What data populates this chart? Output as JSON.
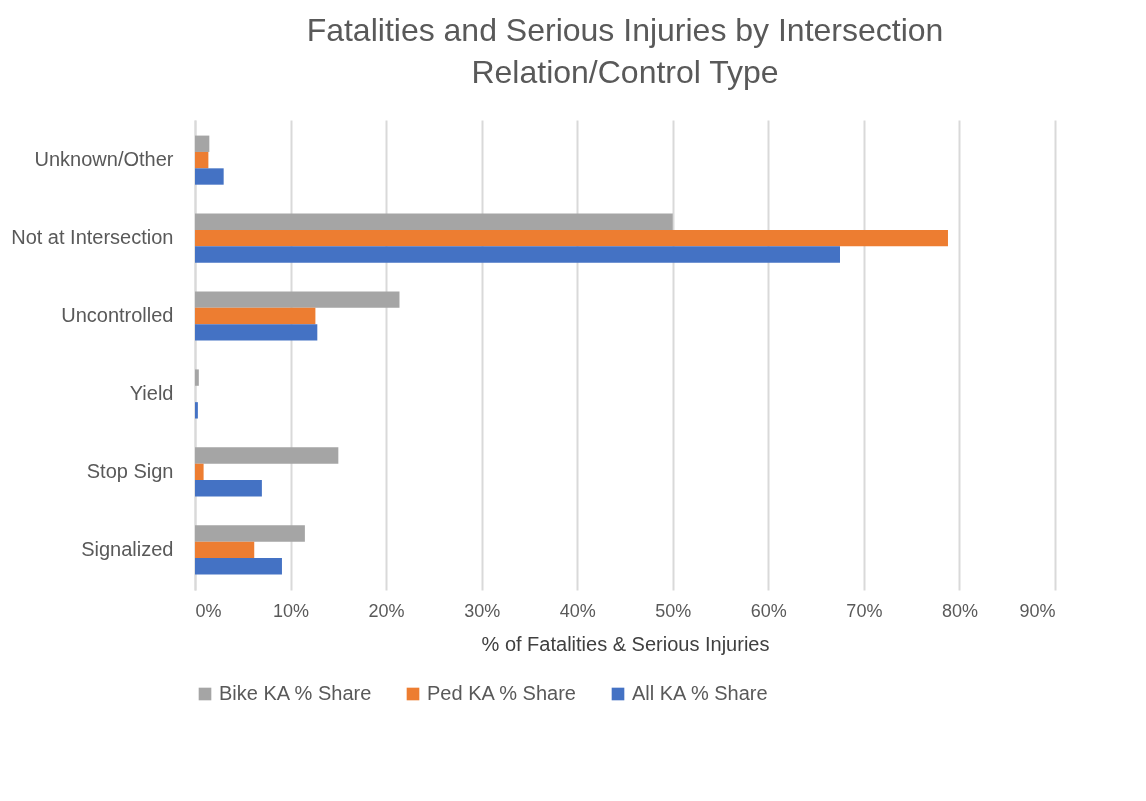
{
  "chart_data": {
    "type": "bar",
    "orientation": "horizontal",
    "title": "Fatalities and Serious Injuries by Intersection Relation/Control Type",
    "xlabel": "% of Fatalities & Serious Injuries",
    "categories": [
      "Unknown/Other",
      "Not at Intersection",
      "Uncontrolled",
      "Yield",
      "Stop Sign",
      "Signalized"
    ],
    "series": [
      {
        "name": "Bike KA % Share",
        "color": "#a5a5a5",
        "values": [
          1.5,
          50,
          21.4,
          0.4,
          15,
          11.5
        ]
      },
      {
        "name": "Ped KA % Share",
        "color": "#ed7d31",
        "values": [
          1.4,
          78.8,
          12.6,
          0,
          0.9,
          6.2
        ]
      },
      {
        "name": "All KA % Share",
        "color": "#4472c4",
        "values": [
          3,
          67.5,
          12.8,
          0.3,
          7,
          9.1
        ]
      }
    ],
    "xlim": [
      0,
      90
    ],
    "xticks": [
      {
        "value": 0,
        "label": "0%"
      },
      {
        "value": 10,
        "label": "10%"
      },
      {
        "value": 20,
        "label": "20%"
      },
      {
        "value": 30,
        "label": "30%"
      },
      {
        "value": 40,
        "label": "40%"
      },
      {
        "value": 50,
        "label": "50%"
      },
      {
        "value": 60,
        "label": "60%"
      },
      {
        "value": 70,
        "label": "70%"
      },
      {
        "value": 80,
        "label": "80%"
      },
      {
        "value": 90,
        "label": "90%"
      }
    ],
    "grid": "x",
    "legend": "bottom"
  }
}
